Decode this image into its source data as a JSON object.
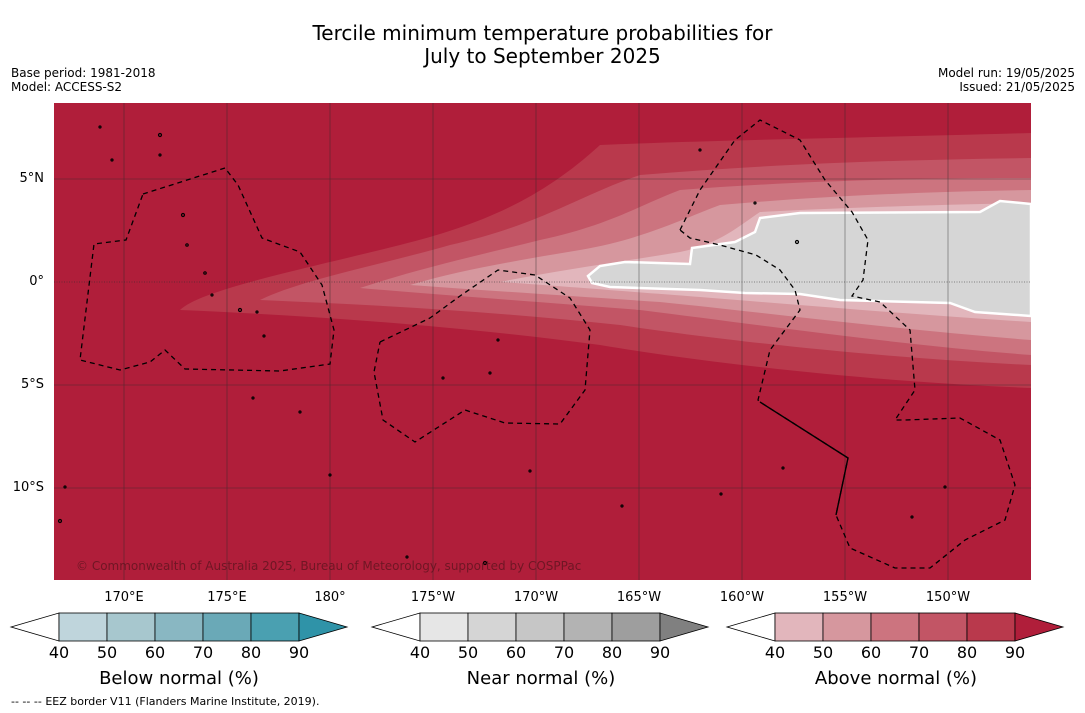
{
  "title": {
    "line1": "Tercile minimum temperature probabilities for",
    "line2": "July to September 2025"
  },
  "meta": {
    "base_period": "Base period: 1981-2018",
    "model": "Model: ACCESS-S2",
    "model_run": "Model run: 19/05/2025",
    "issued": "Issued: 21/05/2025"
  },
  "map": {
    "lat_labels": [
      "5°N",
      "0°",
      "5°S",
      "10°S"
    ],
    "lon_labels": [
      "170°E",
      "175°E",
      "180°",
      "175°W",
      "170°W",
      "165°W",
      "160°W",
      "155°W",
      "150°W"
    ],
    "copyright": "© Commonwealth of Australia 2025, Bureau of Meteorology, supported by COSPPac",
    "background_category": "Above normal, 90%",
    "colors": {
      "above_max": "#b01e3a",
      "grid": "#222222",
      "near_normal_patch": "#d6d6d6",
      "eez_border": "#000000"
    }
  },
  "colorbars": {
    "below": {
      "title": "Below normal (%)",
      "ticks": [
        "40",
        "50",
        "60",
        "70",
        "80",
        "90"
      ],
      "colors": [
        "#ffffff",
        "#bfd5dc",
        "#a7c7ce",
        "#89b7c2",
        "#6aa9b7",
        "#4aa0b1",
        "#2f93a8"
      ]
    },
    "near": {
      "title": "Near normal (%)",
      "ticks": [
        "40",
        "50",
        "60",
        "70",
        "80",
        "90"
      ],
      "colors": [
        "#ffffff",
        "#e6e6e6",
        "#d5d5d5",
        "#c6c6c6",
        "#b3b3b3",
        "#9e9e9e",
        "#808080"
      ]
    },
    "above": {
      "title": "Above normal (%)",
      "ticks": [
        "40",
        "50",
        "60",
        "70",
        "80",
        "90"
      ],
      "colors": [
        "#ffffff",
        "#e2b6bc",
        "#d6979e",
        "#cc747f",
        "#c25565",
        "#b9394c",
        "#b01e3a"
      ]
    }
  },
  "footer": {
    "legend_symbol": "-- -- --",
    "text": "EEZ border V11 (Flanders Marine Institute, 2019)."
  }
}
